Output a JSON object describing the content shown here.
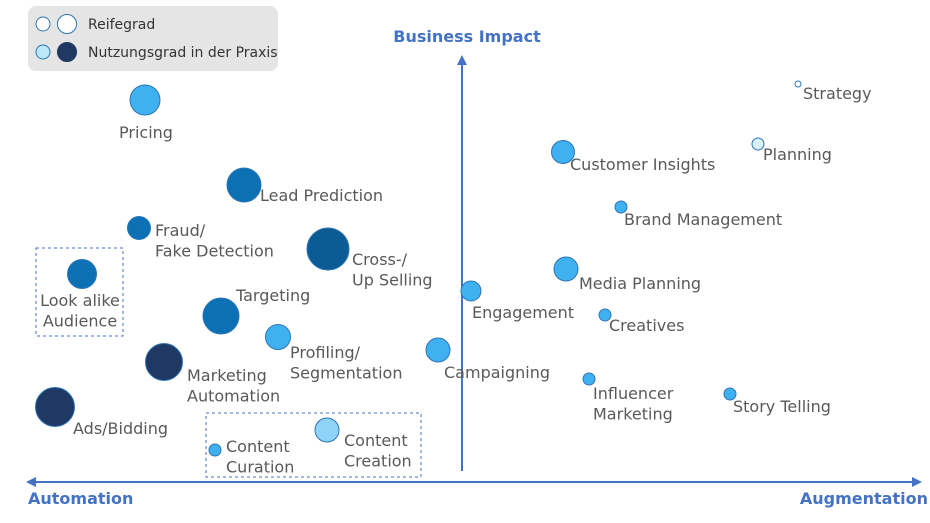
{
  "chart_data": {
    "type": "scatter",
    "x_axis": {
      "left_label": "Automation",
      "right_label": "Augmentation"
    },
    "y_axis": {
      "label": "Business Impact"
    },
    "legend": {
      "placement": "top-left",
      "items": [
        {
          "label": "Reifegrad",
          "style": "outline"
        },
        {
          "label": "Nutzungsgrad in der Praxis",
          "style": "filled"
        }
      ]
    },
    "series": [
      {
        "label": [
          "Pricing"
        ],
        "color": "#3fb1f0"
      },
      {
        "label": [
          "Lead Prediction"
        ],
        "color": "#0b70b4"
      },
      {
        "label": [
          "Fraud/",
          "Fake Detection"
        ],
        "color": "#0b70b4"
      },
      {
        "label": [
          "Cross-/",
          "Up Selling"
        ],
        "color": "#0b5c94"
      },
      {
        "label": [
          "Look alike",
          "Audience"
        ],
        "color": "#0b70b4"
      },
      {
        "label": [
          "Targeting"
        ],
        "color": "#0b70b4"
      },
      {
        "label": [
          "Profiling/",
          "Segmentation"
        ],
        "color": "#3fb1f0"
      },
      {
        "label": [
          "Marketing",
          "Automation"
        ],
        "color": "#1f3864"
      },
      {
        "label": [
          "Ads/Bidding"
        ],
        "color": "#1f3864"
      },
      {
        "label": [
          "Content",
          "Curation"
        ],
        "color": "#3fb1f0"
      },
      {
        "label": [
          "Content",
          "Creation"
        ],
        "color": "#8fd3f8"
      },
      {
        "label": [
          "Campaigning"
        ],
        "color": "#3fb1f0"
      },
      {
        "label": [
          "Engagement"
        ],
        "color": "#3fb1f0"
      },
      {
        "label": [
          "Customer Insights"
        ],
        "color": "#3fb1f0"
      },
      {
        "label": [
          "Brand Management"
        ],
        "color": "#3fb1f0"
      },
      {
        "label": [
          "Media Planning"
        ],
        "color": "#3fb1f0"
      },
      {
        "label": [
          "Creatives"
        ],
        "color": "#3fb1f0"
      },
      {
        "label": [
          "Influencer",
          "Marketing"
        ],
        "color": "#3fb1f0"
      },
      {
        "label": [
          "Story Telling"
        ],
        "color": "#3fb1f0"
      },
      {
        "label": [
          "Strategy"
        ],
        "color": "#ffffff"
      },
      {
        "label": [
          "Planning"
        ],
        "color": "#d9f0fb"
      }
    ],
    "groups": [
      {
        "members": [
          "Look alike Audience"
        ]
      },
      {
        "members": [
          "Content Curation",
          "Content Creation"
        ]
      }
    ]
  },
  "colors": {
    "axis": "#4472c4",
    "label_text": "#595959",
    "point_stroke": "#2e75b6",
    "legend_bg": "#e5e5e5"
  }
}
